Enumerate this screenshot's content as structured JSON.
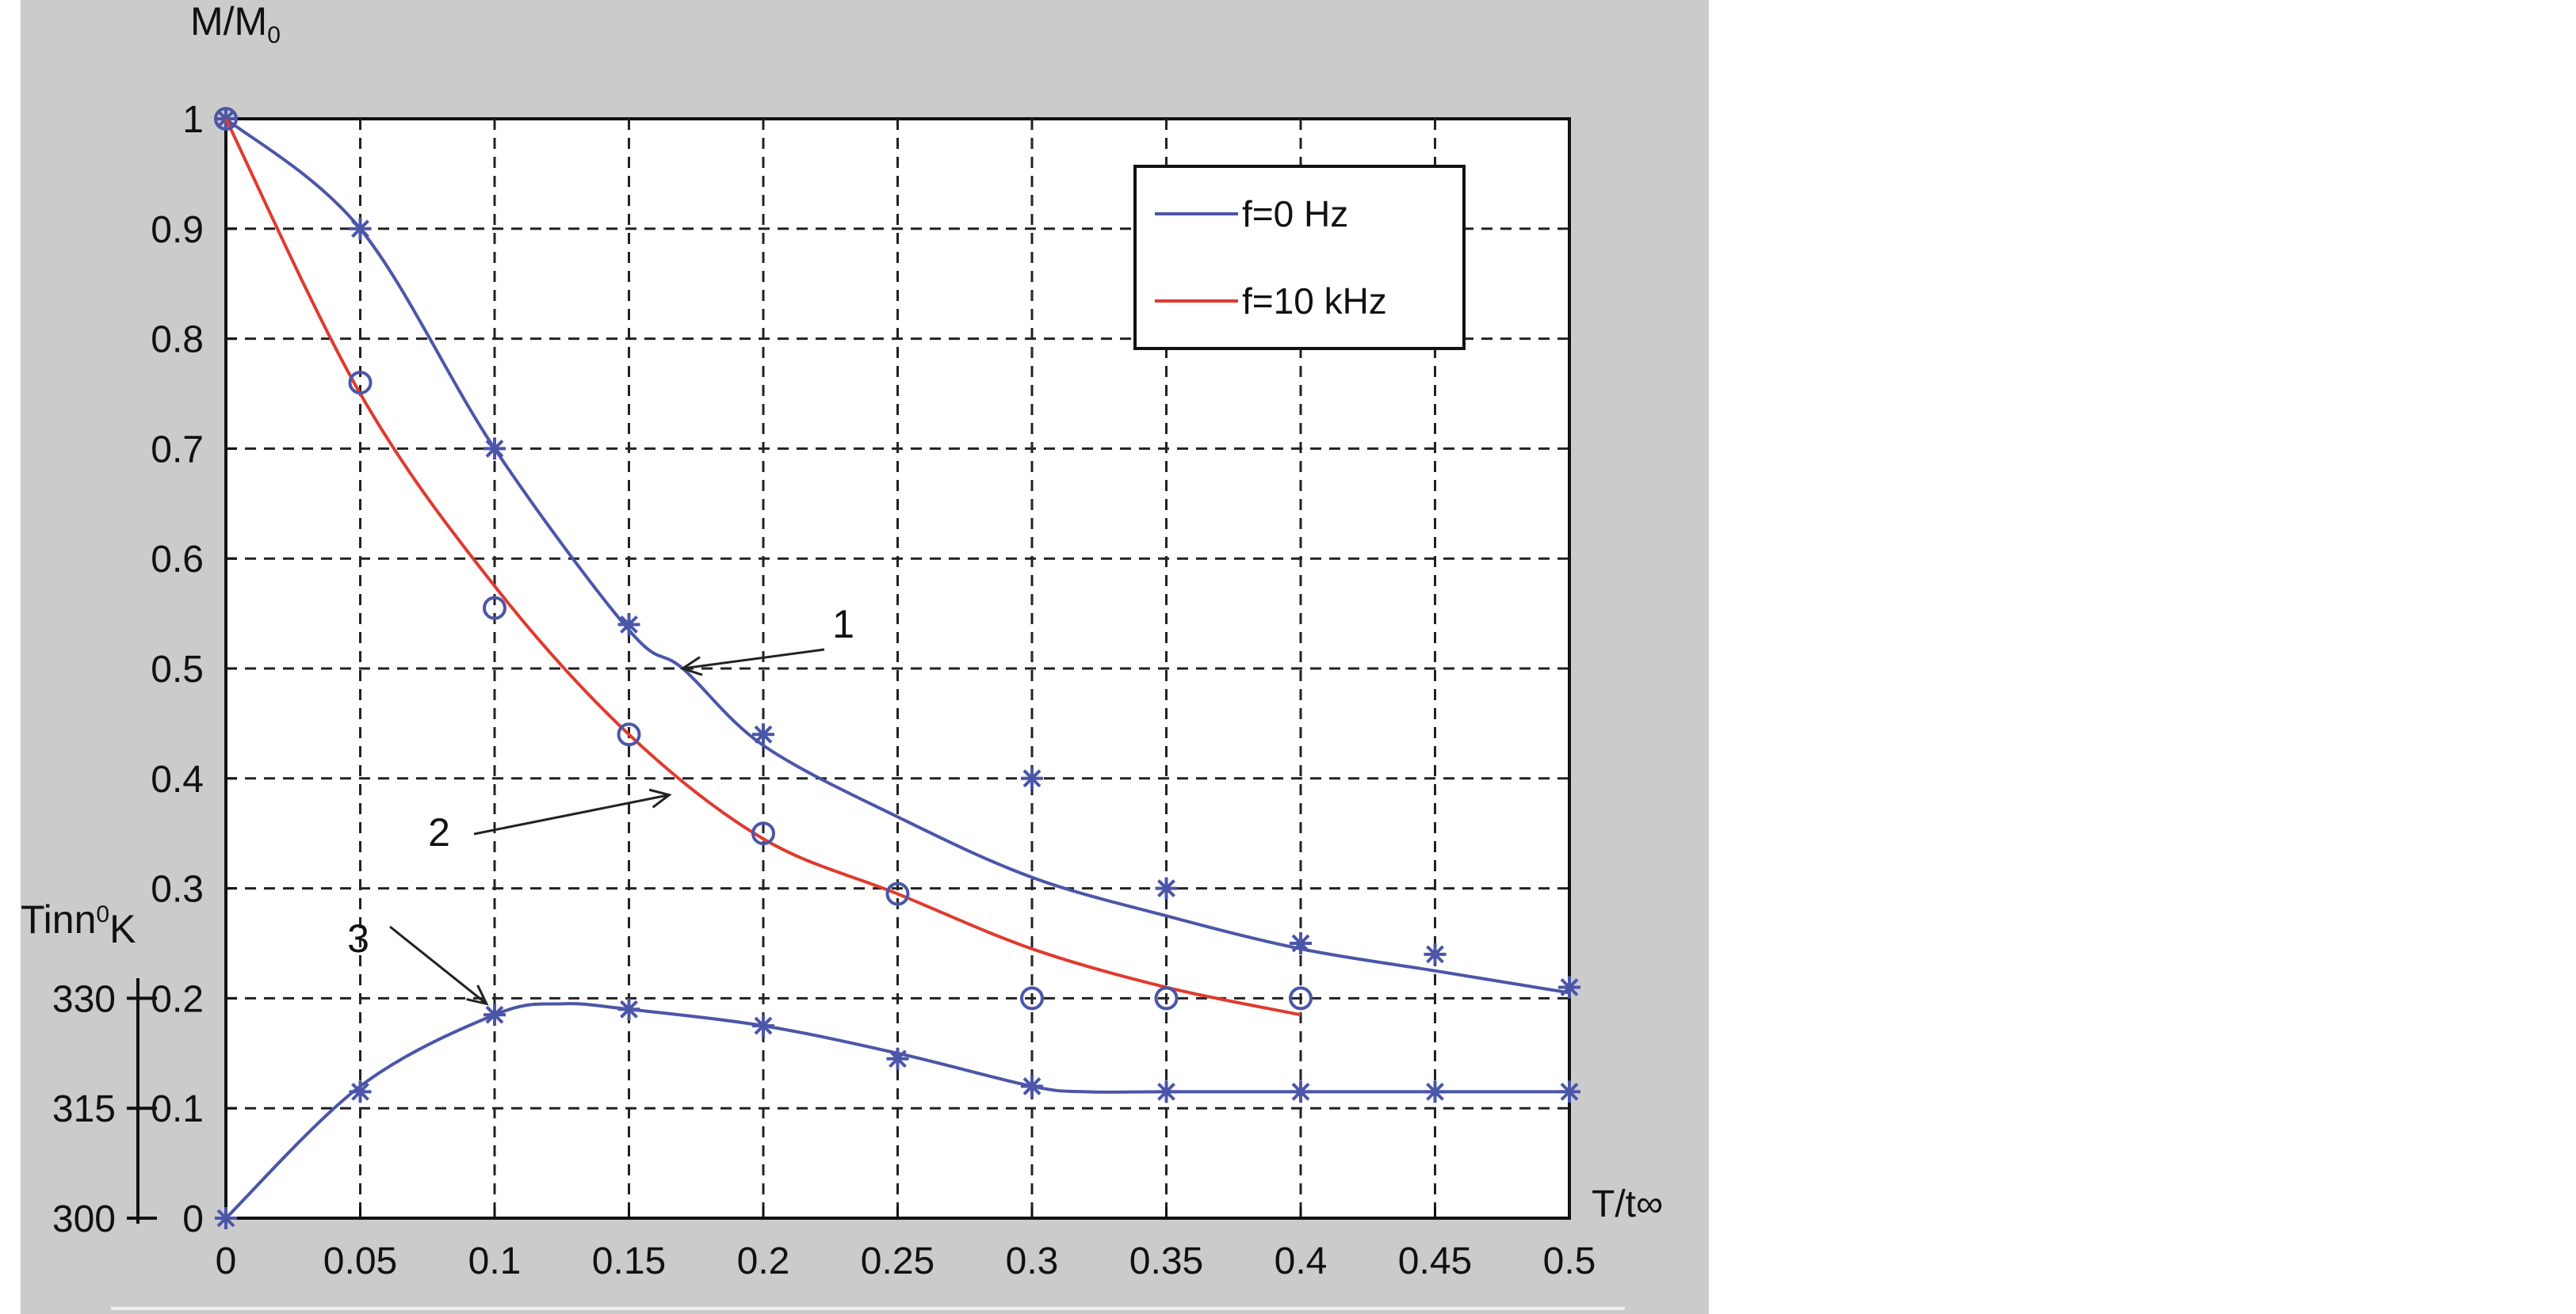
{
  "chart_data": {
    "type": "line",
    "xlabel": "T/t∞",
    "ylabel_main": "M/M",
    "ylabel_main_sub": "0",
    "ylabel_secondary": "Tinn",
    "ylabel_secondary_sub": "0",
    "ylabel_secondary_unit": "K",
    "xlim": [
      0,
      0.5
    ],
    "ylim": [
      0,
      1.0
    ],
    "grid": true,
    "grid_style": "dashed",
    "legend_position": "top-right",
    "x_ticks": [
      "0",
      "0.05",
      "0.1",
      "0.15",
      "0.2",
      "0.25",
      "0.3",
      "0.35",
      "0.4",
      "0.45",
      "0.5"
    ],
    "y_ticks": [
      "0",
      "0.1",
      "0.2",
      "0.3",
      "0.4",
      "0.5",
      "0.6",
      "0.7",
      "0.8",
      "0.9",
      "1"
    ],
    "secondary_axis": {
      "ticks": [
        {
          "label": "300",
          "at_y": 0.0
        },
        {
          "label": "315",
          "at_y": 0.1
        },
        {
          "label": "330",
          "at_y": 0.2
        }
      ]
    },
    "series": [
      {
        "name": "f=0 Hz",
        "color": "#4b56a8",
        "marker": "asterisk",
        "curve": {
          "x": [
            0,
            0.05,
            0.1,
            0.15,
            0.17,
            0.2,
            0.25,
            0.3,
            0.35,
            0.4,
            0.45,
            0.5
          ],
          "y": [
            1.0,
            0.9,
            0.7,
            0.535,
            0.5,
            0.43,
            0.365,
            0.31,
            0.275,
            0.245,
            0.225,
            0.205
          ]
        },
        "markers": {
          "x": [
            0,
            0.05,
            0.1,
            0.15,
            0.2,
            0.3,
            0.35,
            0.4,
            0.45,
            0.5
          ],
          "y": [
            1.0,
            0.9,
            0.7,
            0.54,
            0.44,
            0.4,
            0.3,
            0.25,
            0.24,
            0.21
          ]
        }
      },
      {
        "name": "f=10 kHz",
        "color": "#e03a2e",
        "marker": "circle",
        "marker_color": "#4b56a8",
        "curve": {
          "x": [
            0,
            0.05,
            0.1,
            0.15,
            0.2,
            0.25,
            0.3,
            0.35,
            0.4
          ],
          "y": [
            1.0,
            0.75,
            0.575,
            0.44,
            0.345,
            0.295,
            0.245,
            0.21,
            0.185
          ]
        },
        "markers": {
          "x": [
            0,
            0.05,
            0.1,
            0.15,
            0.2,
            0.25,
            0.3,
            0.35,
            0.4
          ],
          "y": [
            1.0,
            0.76,
            0.555,
            0.44,
            0.35,
            0.295,
            0.2,
            0.2,
            0.2
          ]
        }
      },
      {
        "color": "#4b56a8",
        "marker": "asterisk",
        "curve": {
          "x": [
            0,
            0.05,
            0.1,
            0.125,
            0.15,
            0.2,
            0.25,
            0.3,
            0.32,
            0.35,
            0.4,
            0.45,
            0.5
          ],
          "y": [
            0.0,
            0.12,
            0.185,
            0.195,
            0.19,
            0.175,
            0.15,
            0.12,
            0.115,
            0.115,
            0.115,
            0.115,
            0.115
          ]
        },
        "markers": {
          "x": [
            0,
            0.05,
            0.1,
            0.15,
            0.2,
            0.25,
            0.3,
            0.35,
            0.4,
            0.45,
            0.5
          ],
          "y": [
            0.0,
            0.115,
            0.185,
            0.19,
            0.175,
            0.145,
            0.12,
            0.115,
            0.115,
            0.115,
            0.115
          ]
        }
      }
    ],
    "annotations": [
      {
        "label": "1",
        "target_x": 0.17,
        "target_y": 0.5
      },
      {
        "label": "2",
        "target_x": 0.165,
        "target_y": 0.385
      },
      {
        "label": "3",
        "target_x": 0.097,
        "target_y": 0.195
      }
    ]
  }
}
